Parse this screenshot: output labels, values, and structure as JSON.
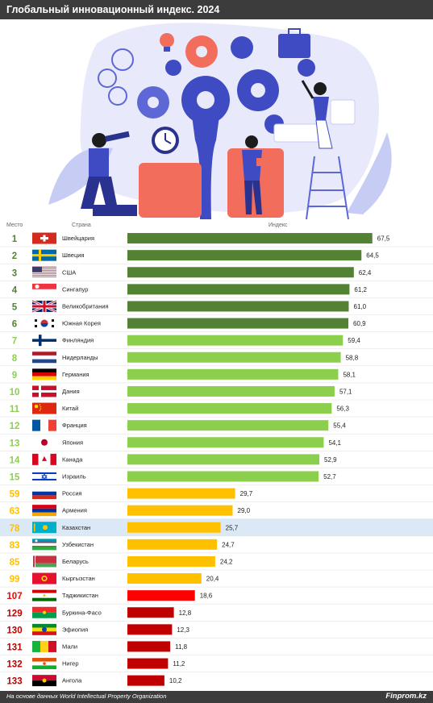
{
  "header": {
    "title": "Глобальный инновационный индекс. 2024"
  },
  "columns": {
    "place": "Место",
    "country": "Страна",
    "index": "Индекс"
  },
  "footer": {
    "source": "На основе данных World Intellectual Property Organization",
    "brand": "Finprom.kz"
  },
  "colors": {
    "header_bg": "#3c3c3c",
    "highlight_row": "#dbe8f5",
    "tiers": {
      "top6": "#548235",
      "top15": "#8ccf4d",
      "central_asia": "#ffc000",
      "bottom": "#c00000",
      "tajikistan": "#ff0000"
    }
  },
  "chart_data": {
    "type": "bar",
    "orientation": "horizontal",
    "xlim": [
      0,
      70
    ],
    "decimal_separator": ",",
    "highlight": "Казахстан",
    "rows": [
      {
        "rank": "1",
        "country": "Швейцария",
        "value": 67.5,
        "tier": "top6",
        "flag": "ch"
      },
      {
        "rank": "2",
        "country": "Швеция",
        "value": 64.5,
        "tier": "top6",
        "flag": "se"
      },
      {
        "rank": "3",
        "country": "США",
        "value": 62.4,
        "tier": "top6",
        "flag": "us"
      },
      {
        "rank": "4",
        "country": "Сингапур",
        "value": 61.2,
        "tier": "top6",
        "flag": "sg"
      },
      {
        "rank": "5",
        "country": "Великобритания",
        "value": 61.0,
        "tier": "top6",
        "flag": "gb"
      },
      {
        "rank": "6",
        "country": "Южная Корея",
        "value": 60.9,
        "tier": "top6",
        "flag": "kr"
      },
      {
        "rank": "7",
        "country": "Финляндия",
        "value": 59.4,
        "tier": "top15",
        "flag": "fi"
      },
      {
        "rank": "8",
        "country": "Нидерланды",
        "value": 58.8,
        "tier": "top15",
        "flag": "nl"
      },
      {
        "rank": "9",
        "country": "Германия",
        "value": 58.1,
        "tier": "top15",
        "flag": "de"
      },
      {
        "rank": "10",
        "country": "Дания",
        "value": 57.1,
        "tier": "top15",
        "flag": "dk"
      },
      {
        "rank": "11",
        "country": "Китай",
        "value": 56.3,
        "tier": "top15",
        "flag": "cn"
      },
      {
        "rank": "12",
        "country": "Франция",
        "value": 55.4,
        "tier": "top15",
        "flag": "fr"
      },
      {
        "rank": "13",
        "country": "Япония",
        "value": 54.1,
        "tier": "top15",
        "flag": "jp"
      },
      {
        "rank": "14",
        "country": "Канада",
        "value": 52.9,
        "tier": "top15",
        "flag": "ca"
      },
      {
        "rank": "15",
        "country": "Израиль",
        "value": 52.7,
        "tier": "top15",
        "flag": "il"
      },
      {
        "rank": "59",
        "country": "Россия",
        "value": 29.7,
        "tier": "central_asia",
        "flag": "ru"
      },
      {
        "rank": "63",
        "country": "Армения",
        "value": 29.0,
        "tier": "central_asia",
        "flag": "am"
      },
      {
        "rank": "78",
        "country": "Казахстан",
        "value": 25.7,
        "tier": "central_asia",
        "flag": "kz"
      },
      {
        "rank": "83",
        "country": "Узбекистан",
        "value": 24.7,
        "tier": "central_asia",
        "flag": "uz"
      },
      {
        "rank": "85",
        "country": "Беларусь",
        "value": 24.2,
        "tier": "central_asia",
        "flag": "by"
      },
      {
        "rank": "99",
        "country": "Кыргызстан",
        "value": 20.4,
        "tier": "central_asia",
        "flag": "kg"
      },
      {
        "rank": "107",
        "country": "Таджикистан",
        "value": 18.6,
        "tier": "tajikistan",
        "flag": "tj"
      },
      {
        "rank": "129",
        "country": "Буркина-Фасо",
        "value": 12.8,
        "tier": "bottom",
        "flag": "bf"
      },
      {
        "rank": "130",
        "country": "Эфиопия",
        "value": 12.3,
        "tier": "bottom",
        "flag": "et"
      },
      {
        "rank": "131",
        "country": "Мали",
        "value": 11.8,
        "tier": "bottom",
        "flag": "ml"
      },
      {
        "rank": "132",
        "country": "Нигер",
        "value": 11.2,
        "tier": "bottom",
        "flag": "ne"
      },
      {
        "rank": "133",
        "country": "Ангола",
        "value": 10.2,
        "tier": "bottom",
        "flag": "ao"
      }
    ]
  }
}
